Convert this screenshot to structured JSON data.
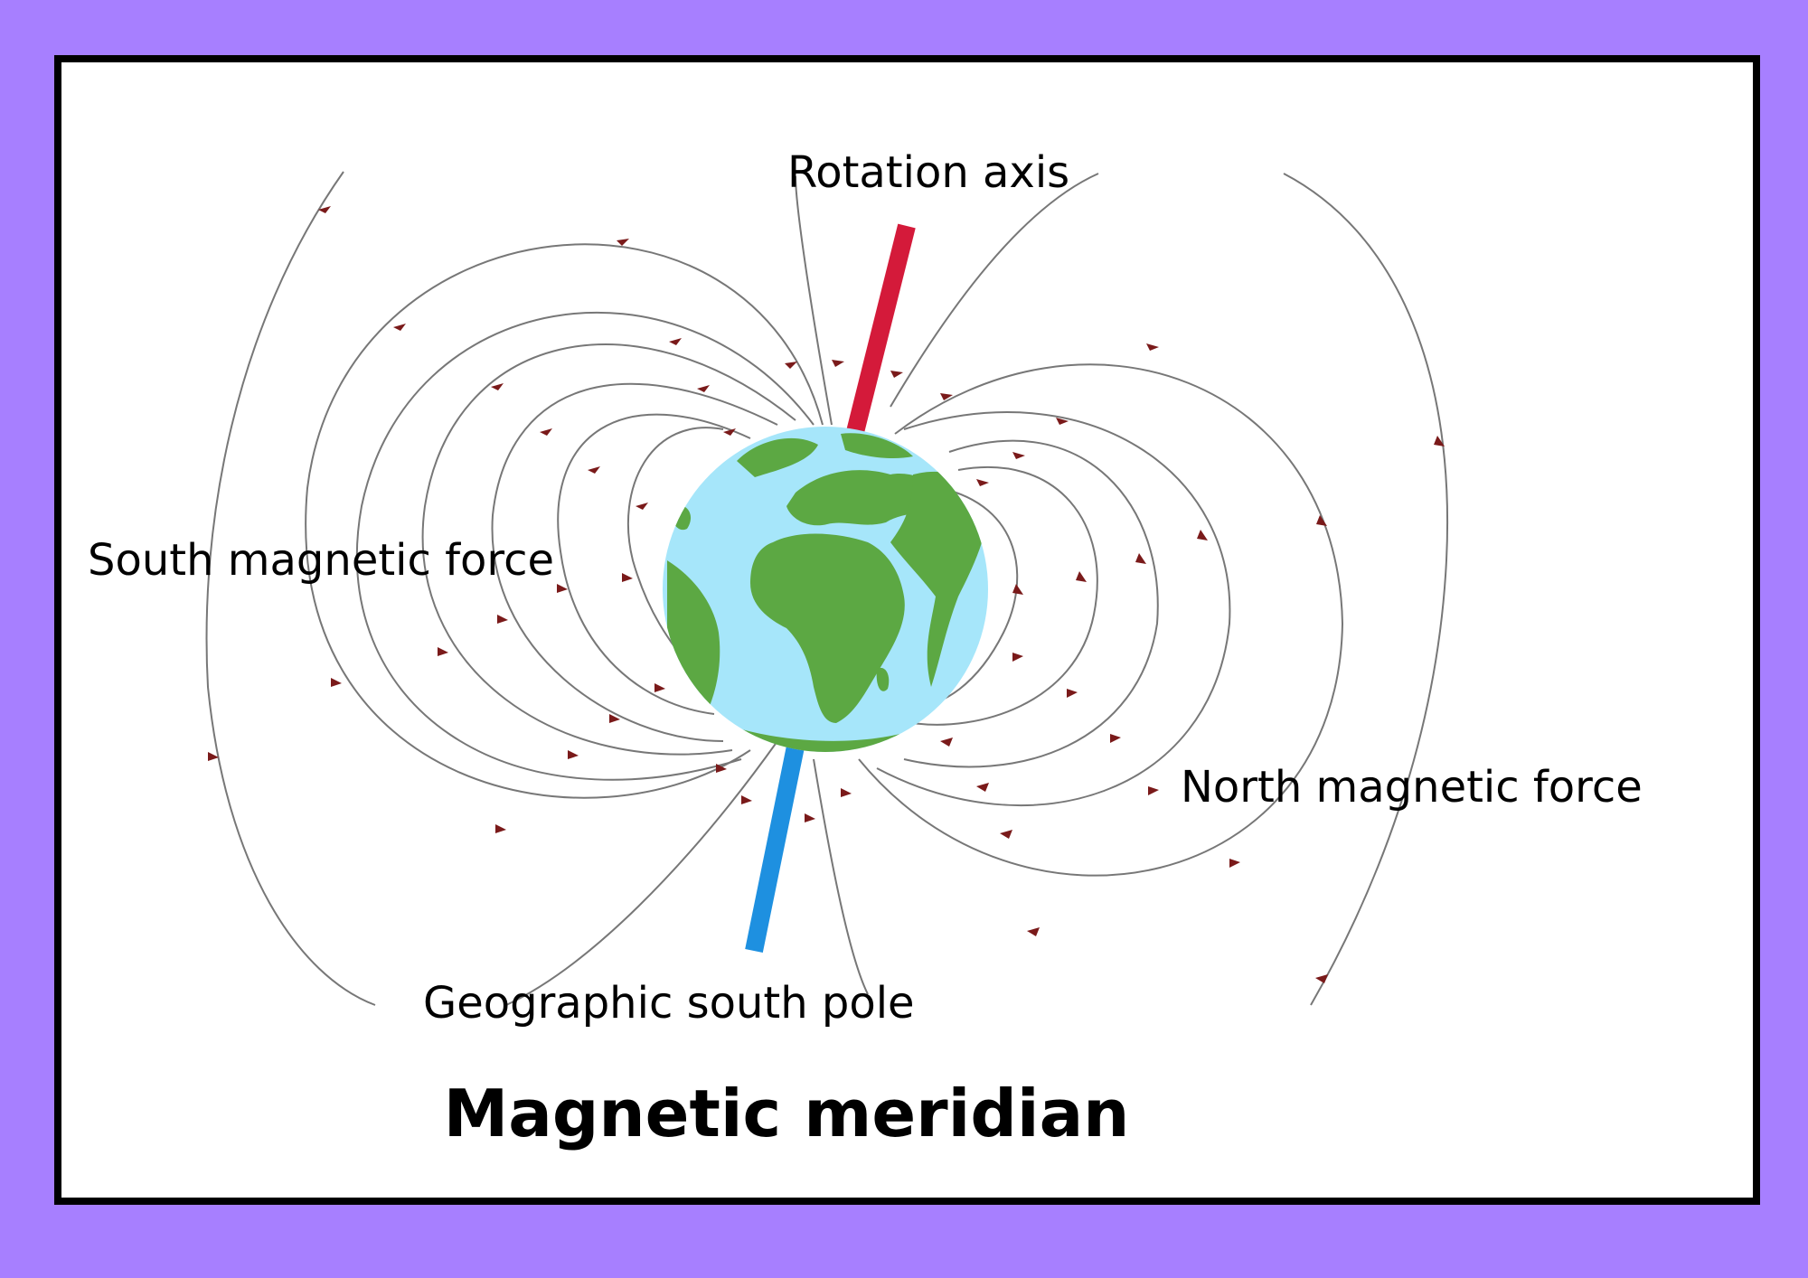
{
  "labels": {
    "rotation_axis": "Rotation axis",
    "south_force": "South magnetic force",
    "north_force": "North magnetic force",
    "south_pole": "Geographic south pole"
  },
  "title": "Magnetic meridian",
  "colors": {
    "background": "#a77fff",
    "axis_north": "#d41a3a",
    "axis_south": "#1e90e0",
    "ocean": "#a6e6fa",
    "land": "#5ca843",
    "field_line": "#777777",
    "arrow": "#7a1a1a"
  },
  "icons": [
    "earth-globe-icon",
    "field-arrow-icon"
  ]
}
